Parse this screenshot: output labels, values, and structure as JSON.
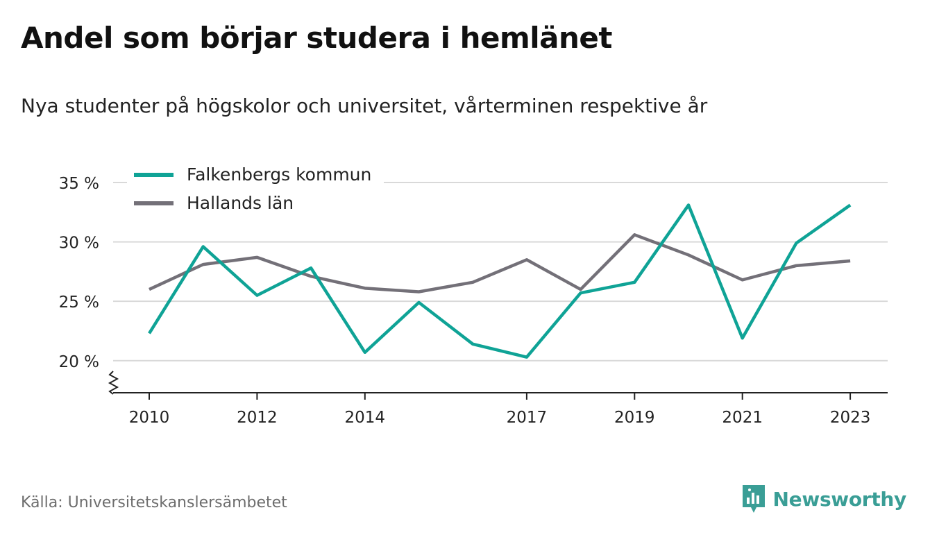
{
  "header": {
    "title": "Andel som börjar studera i hemlänet",
    "subtitle": "Nya studenter på högskolor och universitet, vårterminen respektive år"
  },
  "footer": {
    "source": "Källa: Universitetskanslersämbetet",
    "brand": "Newsworthy",
    "brand_icon": "chart-logo-icon"
  },
  "colors": {
    "falkenberg": "#0fa396",
    "halland": "#737078",
    "grid": "#d9d9d9",
    "axis": "#222222"
  },
  "chart_data": {
    "type": "line",
    "title": "Andel som börjar studera i hemlänet",
    "subtitle": "Nya studenter på högskolor och universitet, vårterminen respektive år",
    "x": [
      2010,
      2011,
      2012,
      2013,
      2014,
      2015,
      2016,
      2017,
      2018,
      2019,
      2020,
      2021,
      2022,
      2023
    ],
    "x_ticks": [
      "2010",
      "2012",
      "2014",
      "2017",
      "2019",
      "2021",
      "2023"
    ],
    "y_ticks": [
      "20 %",
      "25 %",
      "30 %",
      "35 %"
    ],
    "ylim": [
      17.3,
      35
    ],
    "y_axis_break": true,
    "grid": true,
    "legend_position": "top-left",
    "series": [
      {
        "name": "Falkenbergs kommun",
        "color": "#0fa396",
        "values": [
          22.3,
          29.6,
          25.5,
          27.8,
          20.7,
          24.9,
          21.4,
          20.3,
          25.7,
          26.6,
          33.1,
          21.9,
          29.9,
          33.1
        ]
      },
      {
        "name": "Hallands län",
        "color": "#737078",
        "values": [
          26.0,
          28.1,
          28.7,
          27.1,
          26.1,
          25.8,
          26.6,
          28.5,
          26.0,
          30.6,
          28.9,
          26.8,
          28.0,
          28.4
        ]
      }
    ]
  }
}
